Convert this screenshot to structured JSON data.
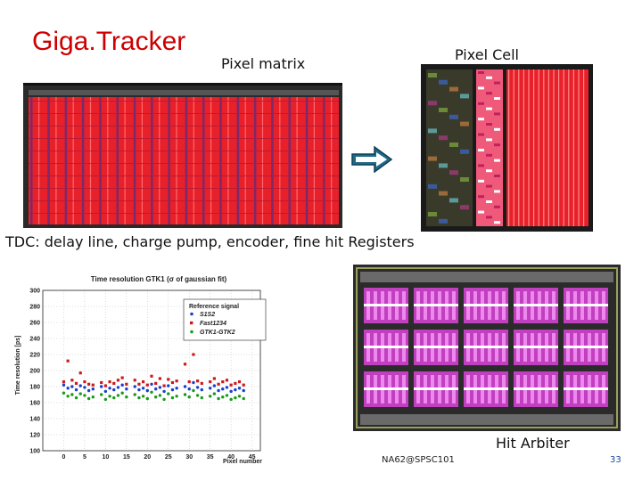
{
  "slide": {
    "title": "Giga.Tracker",
    "pixel_matrix_label": "Pixel matrix",
    "pixel_cell_label": "Pixel Cell",
    "tdc_caption": "TDC: delay line, charge pump, encoder, fine hit Registers",
    "hit_arbiter_label": "Hit Arbiter",
    "footer": "NA62@SPSC101",
    "page_number": "33",
    "colors": {
      "title": "#cc0000",
      "arrow": "#1e6a8a",
      "layout_red": "#e8202a",
      "layout_magenta": "#c040c0"
    },
    "icons": {
      "arrow": "right-arrow-icon"
    }
  },
  "chart_data": {
    "type": "scatter",
    "title": "Time resolution GTK1 (σ of gaussian fit)",
    "xlabel": "Pixel number",
    "ylabel": "Time resolution [ps]",
    "xlim": [
      -5,
      47
    ],
    "ylim": [
      100,
      300
    ],
    "xticks": [
      0,
      5,
      10,
      15,
      20,
      25,
      30,
      35,
      40,
      45
    ],
    "yticks": [
      100,
      120,
      140,
      160,
      180,
      200,
      220,
      240,
      260,
      280,
      300
    ],
    "grid": true,
    "legend": {
      "title": "Reference signal",
      "placement": "top-right"
    },
    "series": [
      {
        "name": "S1S2",
        "color": "#1a3fcc",
        "x": [
          0,
          1,
          2,
          3,
          4,
          5,
          6,
          7,
          9,
          10,
          11,
          12,
          13,
          14,
          15,
          17,
          18,
          19,
          20,
          21,
          22,
          23,
          24,
          25,
          26,
          27,
          29,
          30,
          31,
          32,
          33,
          35,
          36,
          37,
          38,
          39,
          40,
          41,
          42,
          43
        ],
        "y": [
          182,
          178,
          180,
          176,
          181,
          179,
          175,
          177,
          180,
          174,
          178,
          176,
          179,
          182,
          177,
          180,
          176,
          178,
          175,
          183,
          177,
          179,
          174,
          181,
          176,
          178,
          180,
          177,
          185,
          179,
          176,
          178,
          181,
          175,
          177,
          179,
          174,
          176,
          178,
          175
        ]
      },
      {
        "name": "Fast1234",
        "color": "#cc1a1a",
        "x": [
          0,
          1,
          2,
          3,
          4,
          5,
          6,
          7,
          9,
          10,
          11,
          12,
          13,
          14,
          15,
          17,
          18,
          19,
          20,
          21,
          22,
          23,
          24,
          25,
          26,
          27,
          29,
          30,
          31,
          32,
          33,
          35,
          36,
          37,
          38,
          39,
          40,
          41,
          42,
          43
        ],
        "y": [
          186,
          212,
          188,
          184,
          197,
          186,
          183,
          182,
          185,
          181,
          186,
          184,
          188,
          191,
          183,
          188,
          183,
          186,
          182,
          193,
          184,
          190,
          181,
          189,
          185,
          187,
          208,
          186,
          220,
          187,
          184,
          186,
          190,
          183,
          186,
          188,
          182,
          184,
          186,
          182
        ]
      },
      {
        "name": "GTK1-GTK2",
        "color": "#1a9a1a",
        "x": [
          0,
          1,
          2,
          3,
          4,
          5,
          6,
          7,
          9,
          10,
          11,
          12,
          13,
          14,
          15,
          17,
          18,
          19,
          20,
          21,
          22,
          23,
          24,
          25,
          26,
          27,
          29,
          30,
          31,
          32,
          33,
          35,
          36,
          37,
          38,
          39,
          40,
          41,
          42,
          43
        ],
        "y": [
          172,
          168,
          170,
          166,
          171,
          169,
          165,
          167,
          170,
          164,
          168,
          166,
          169,
          172,
          167,
          170,
          166,
          168,
          165,
          173,
          167,
          169,
          164,
          171,
          166,
          168,
          170,
          167,
          175,
          169,
          166,
          168,
          171,
          165,
          167,
          169,
          164,
          166,
          168,
          165
        ]
      }
    ]
  }
}
